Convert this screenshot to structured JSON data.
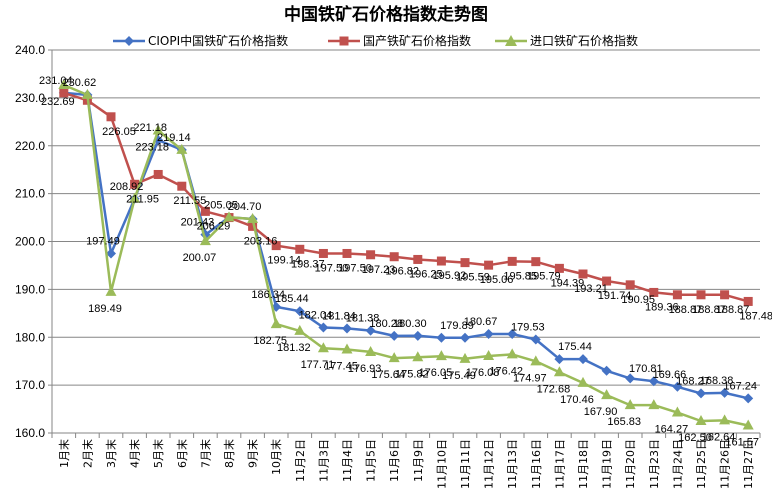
{
  "chart_data": {
    "type": "line",
    "title": "中国铁矿石价格指数走势图",
    "ylim": [
      160,
      240
    ],
    "ytick_step": 10,
    "grid": true,
    "legend_position": "top",
    "categories": [
      "1月末",
      "2月末",
      "3月末",
      "4月末",
      "5月末",
      "6月末",
      "7月末",
      "8月末",
      "9月末",
      "10月末",
      "11月2日",
      "11月3日",
      "11月4日",
      "11月5日",
      "11月6日",
      "11月9日",
      "11月10日",
      "11月11日",
      "11月12日",
      "11月13日",
      "11月16日",
      "11月17日",
      "11月18日",
      "11月19日",
      "11月20日",
      "11月23日",
      "11月24日",
      "11月25日",
      "11月26日",
      "11月27日"
    ],
    "series": [
      {
        "name": "CIOPI中国铁矿石价格指数",
        "color": "#4472C4",
        "marker": "diamond",
        "values": [
          231.04,
          230.62,
          197.49,
          208.92,
          221.18,
          219.14,
          201.43,
          205.05,
          204.7,
          186.34,
          185.44,
          182.04,
          181.84,
          181.38,
          180.28,
          180.3,
          179.89,
          179.89,
          180.67,
          180.67,
          179.53,
          175.44,
          175.44,
          173.0,
          171.4,
          170.81,
          169.66,
          168.27,
          168.38,
          167.24
        ],
        "labels": [
          "231.04",
          "230.62",
          "197.49",
          "208.92",
          "221.18",
          "219.14",
          "201.43",
          "205.05",
          "204.70",
          "186.34",
          "185.44",
          "182.04",
          "181.84",
          "181.38",
          "180.28",
          "180.30",
          "",
          "179.89",
          "180.67",
          "",
          "179.53",
          "",
          "175.44",
          "",
          "",
          "170.81",
          "169.66",
          "168.27",
          "168.38",
          "167.24"
        ]
      },
      {
        "name": "国产铁矿石价格指数",
        "color": "#C0504D",
        "marker": "square",
        "values": [
          231.04,
          229.5,
          226.05,
          211.95,
          214.0,
          211.55,
          206.29,
          205.0,
          203.16,
          199.14,
          198.37,
          197.5,
          197.5,
          197.23,
          196.82,
          196.25,
          195.92,
          195.59,
          195.06,
          195.85,
          195.79,
          194.39,
          193.21,
          191.74,
          190.95,
          189.36,
          188.87,
          188.87,
          188.87,
          187.48
        ],
        "labels": [
          "",
          "",
          "226.05",
          "211.95",
          "",
          "211.55",
          "206.29",
          "",
          "203.16",
          "199.14",
          "198.37",
          "197.50",
          "197.50",
          "197.23",
          "196.82",
          "196.25",
          "195.92",
          "195.59",
          "195.06",
          "195.85",
          "195.79",
          "194.39",
          "193.21",
          "191.74",
          "190.95",
          "189.36",
          "188.87",
          "188.87",
          "188.87",
          "187.48"
        ]
      },
      {
        "name": "进口铁矿石价格指数",
        "color": "#9BBB59",
        "marker": "triangle",
        "values": [
          232.69,
          230.62,
          189.49,
          208.92,
          223.18,
          219.14,
          200.07,
          205.05,
          204.7,
          182.75,
          181.32,
          177.71,
          177.45,
          176.93,
          175.64,
          175.82,
          176.05,
          175.49,
          176.08,
          176.42,
          174.97,
          172.68,
          170.46,
          167.9,
          165.83,
          165.83,
          164.27,
          162.5,
          162.64,
          161.57
        ],
        "labels": [
          "232.69",
          "",
          "189.49",
          "",
          "223.18",
          "",
          "200.07",
          "",
          "",
          "182.75",
          "181.32",
          "177.71",
          "177.45",
          "176.93",
          "175.64",
          "175.82",
          "176.05",
          "175.49",
          "176.08",
          "176.42",
          "174.97",
          "172.68",
          "170.46",
          "167.90",
          "165.83",
          "",
          "164.27",
          "162.50",
          "162.64",
          "161.57"
        ]
      }
    ]
  }
}
